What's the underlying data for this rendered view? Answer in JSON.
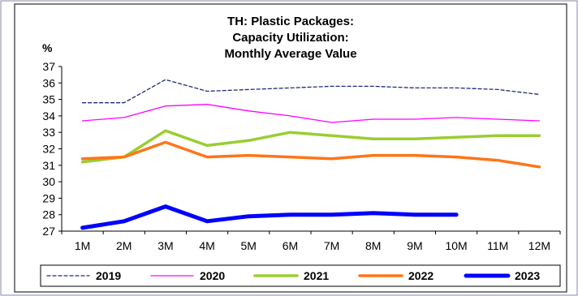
{
  "chart_data": {
    "type": "line",
    "title_lines": [
      "TH: Plastic Packages:",
      "Capacity Utilization:",
      "Monthly Average Value"
    ],
    "ylabel": "%",
    "xlabel": "",
    "categories": [
      "1M",
      "2M",
      "3M",
      "4M",
      "5M",
      "6M",
      "7M",
      "8M",
      "9M",
      "10M",
      "11M",
      "12M"
    ],
    "ylim": [
      27,
      37
    ],
    "yticks": [
      "37",
      "36",
      "35",
      "34",
      "33",
      "32",
      "31",
      "30",
      "29",
      "28",
      "27"
    ],
    "grid": false,
    "legend_position": "bottom",
    "series": [
      {
        "name": "2019",
        "color": "#1f2a7a",
        "style": "dashed",
        "weight": "thin",
        "values": [
          34.8,
          34.8,
          36.2,
          35.5,
          35.6,
          35.7,
          35.8,
          35.8,
          35.7,
          35.7,
          35.6,
          35.3
        ]
      },
      {
        "name": "2020",
        "color": "#ff00ff",
        "style": "solid",
        "weight": "thin",
        "values": [
          33.7,
          33.9,
          34.6,
          34.7,
          34.3,
          34.0,
          33.6,
          33.8,
          33.8,
          33.9,
          33.8,
          33.7
        ]
      },
      {
        "name": "2021",
        "color": "#9acd32",
        "style": "solid",
        "weight": "medium",
        "values": [
          31.2,
          31.5,
          33.1,
          32.2,
          32.5,
          33.0,
          32.8,
          32.6,
          32.6,
          32.7,
          32.8,
          32.8
        ]
      },
      {
        "name": "2022",
        "color": "#ff7518",
        "style": "solid",
        "weight": "medium",
        "values": [
          31.4,
          31.5,
          32.4,
          31.5,
          31.6,
          31.5,
          31.4,
          31.6,
          31.6,
          31.5,
          31.3,
          30.9
        ]
      },
      {
        "name": "2023",
        "color": "#0000ff",
        "style": "solid",
        "weight": "thick",
        "values": [
          27.2,
          27.6,
          28.5,
          27.6,
          27.9,
          28.0,
          28.0,
          28.1,
          28.0,
          28.0,
          null,
          null
        ]
      }
    ]
  }
}
